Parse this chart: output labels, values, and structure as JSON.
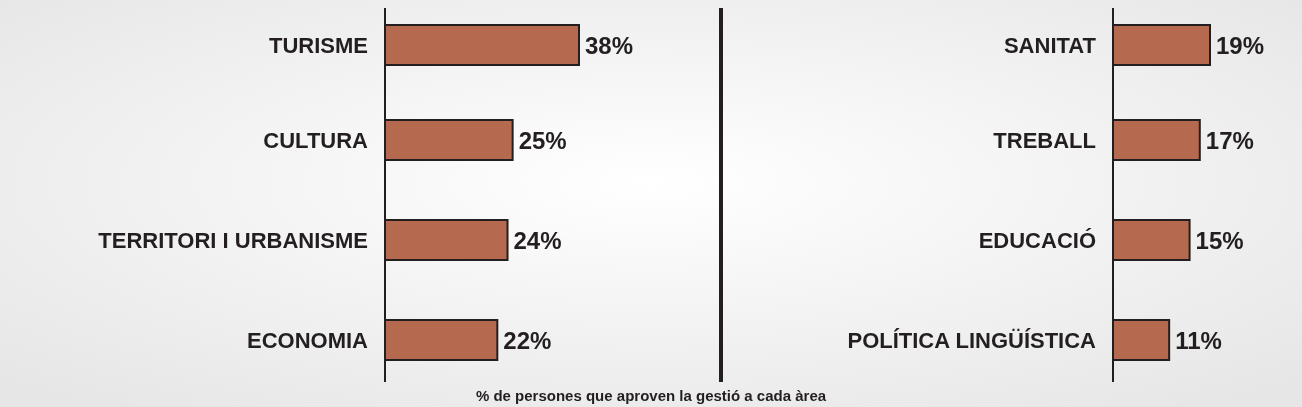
{
  "chart_data": [
    {
      "type": "bar",
      "orientation": "horizontal",
      "categories": [
        "TURISME",
        "CULTURA",
        "TERRITORI I URBANISME",
        "ECONOMIA"
      ],
      "values": [
        38,
        25,
        24,
        22
      ],
      "value_labels": [
        "38%",
        "25%",
        "24%",
        "22%"
      ],
      "color": "#b5694f",
      "annotations": [
        "% de persones que aproven la gestió a cada àrea"
      ]
    },
    {
      "type": "bar",
      "orientation": "horizontal",
      "categories": [
        "SANITAT",
        "TREBALL",
        "EDUCACIÓ",
        "POLÍTICA LINGÜÍSTICA"
      ],
      "values": [
        19,
        17,
        15,
        11
      ],
      "value_labels": [
        "19%",
        "17%",
        "15%",
        "11%"
      ],
      "color": "#b5694f"
    }
  ]
}
